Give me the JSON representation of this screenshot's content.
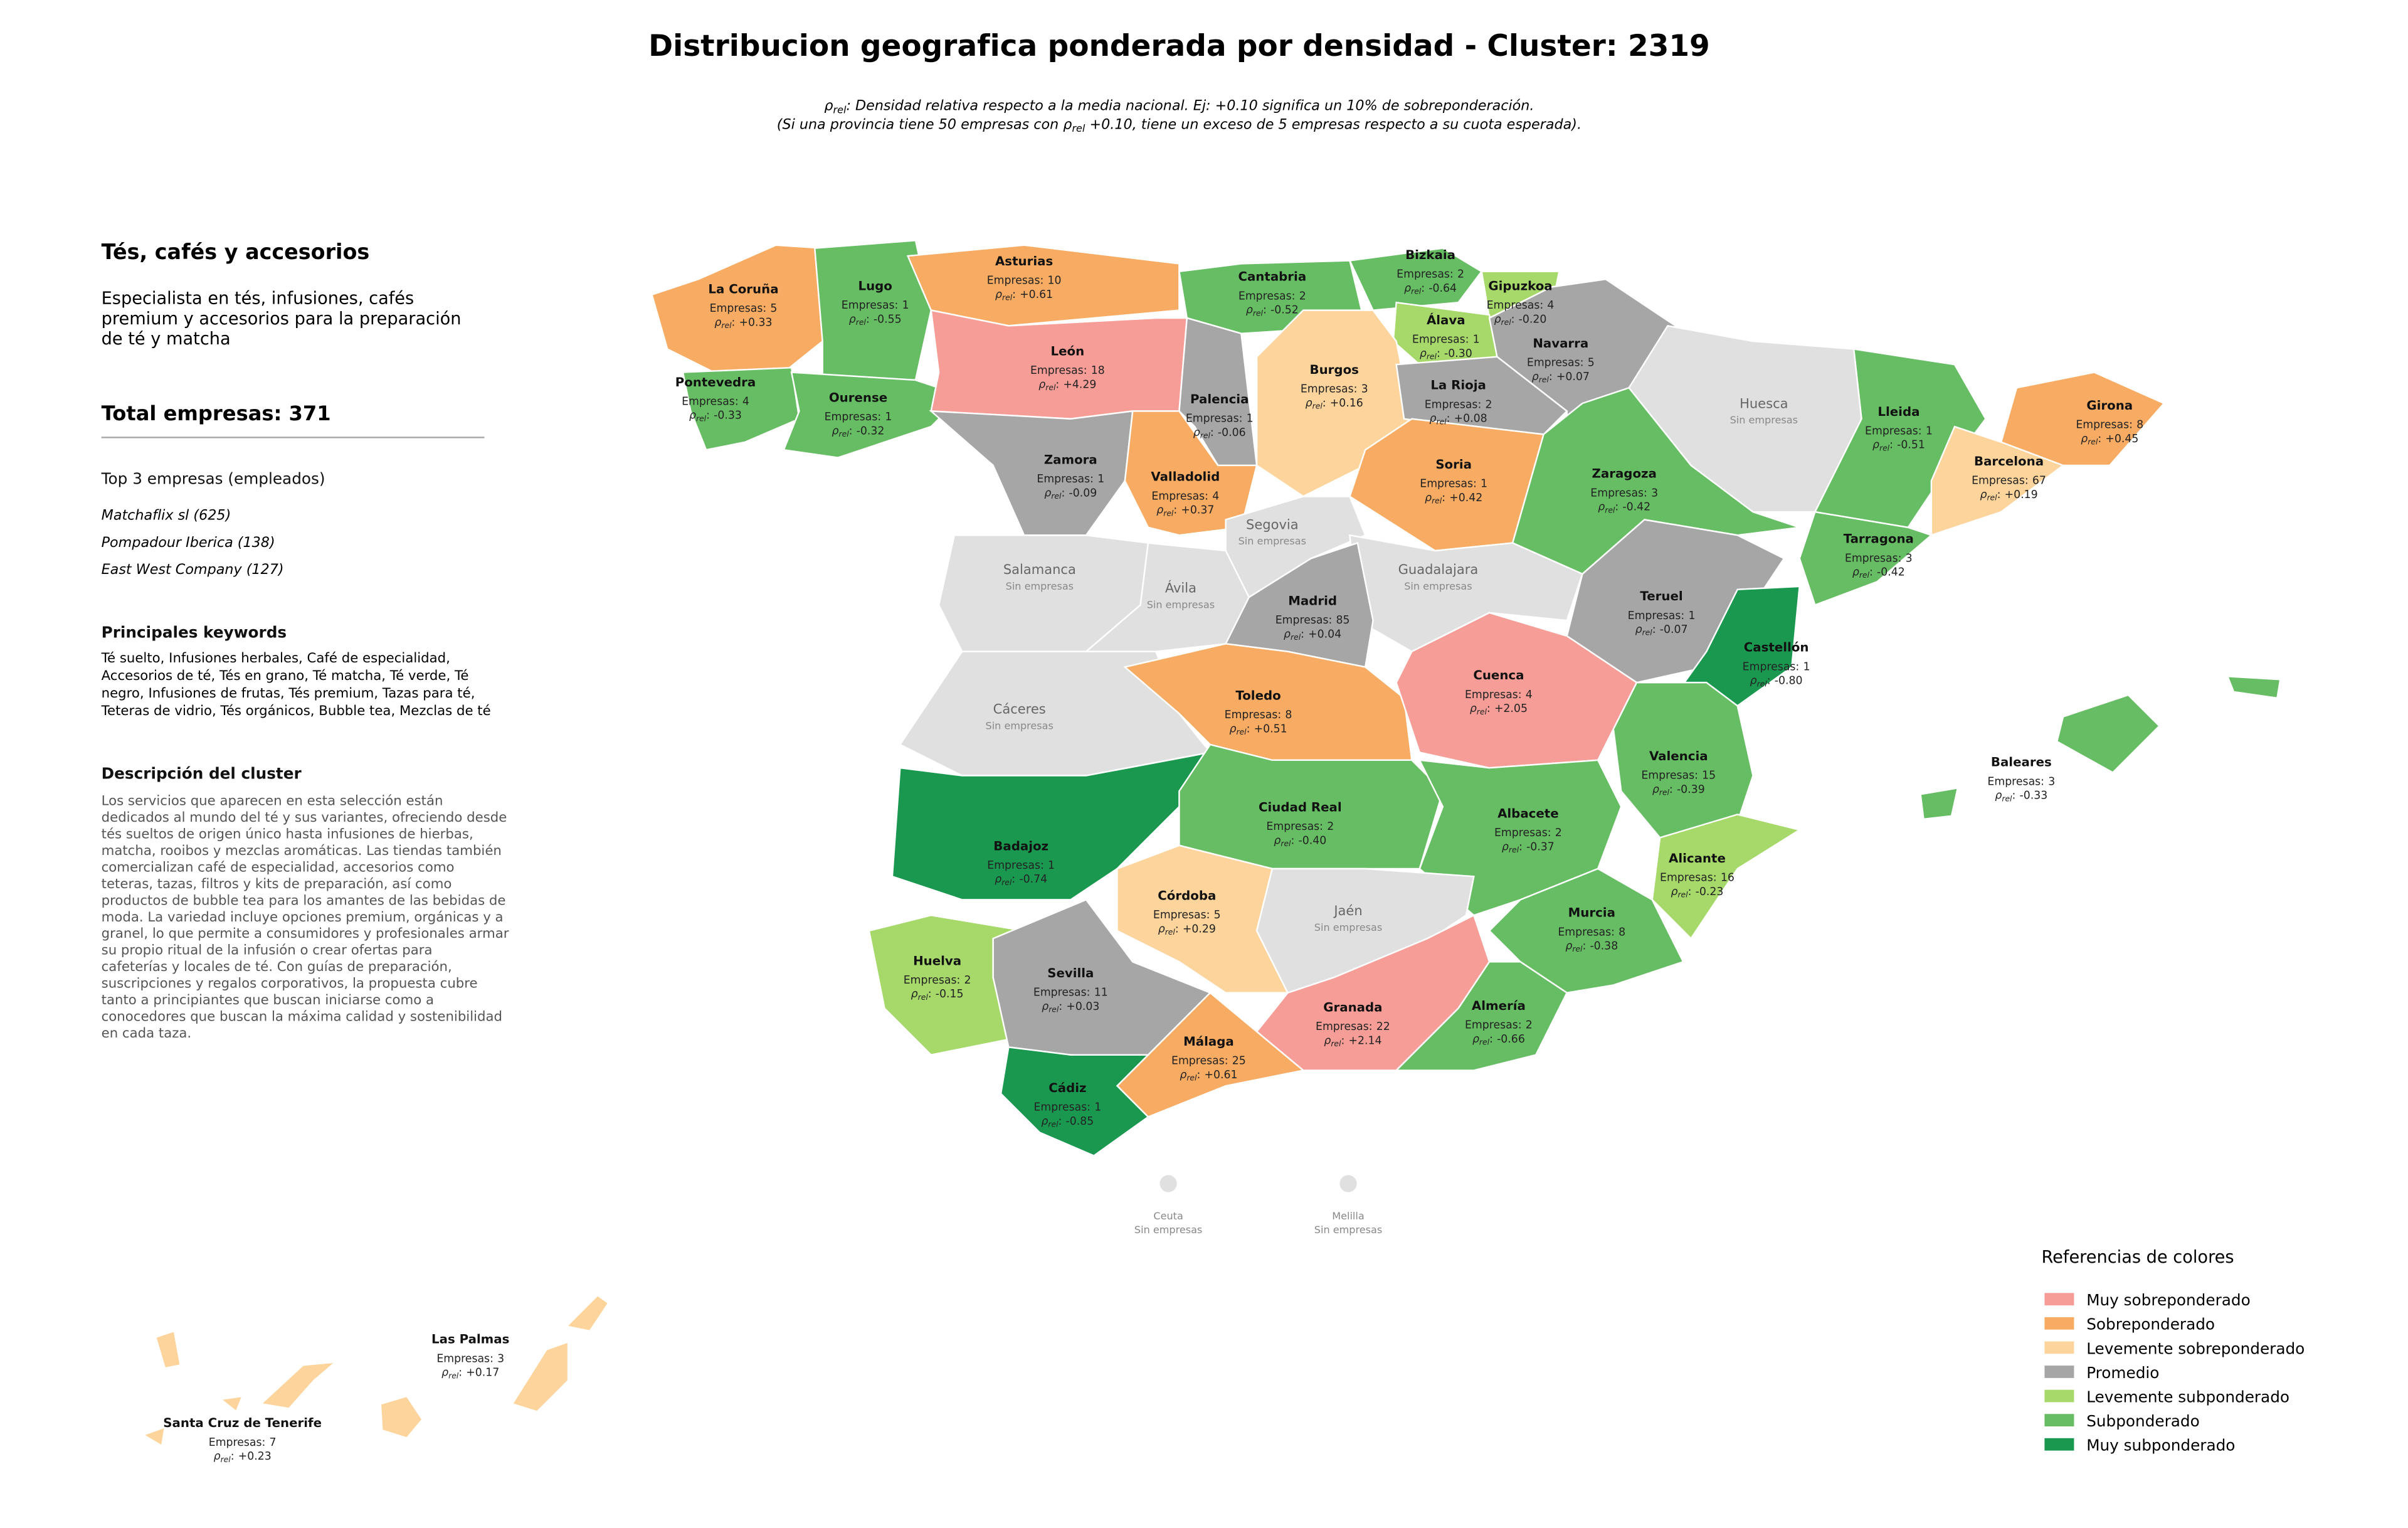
{
  "title": "Distribucion geografica ponderada por densidad - Cluster: 2319",
  "subtitle": [
    {
      "pre": "ρ",
      "sub": "rel",
      "post": ": Densidad relativa respecto a la media nacional. Ej: +0.10 significa un 10% de sobreponderación."
    },
    {
      "pre": "(Si una provincia tiene 50 empresas con ρ",
      "sub": "rel",
      "post": " +0.10, tiene un exceso de 5 empresas respecto a su cuota esperada)."
    }
  ],
  "sidebar": {
    "heading": "Tés, cafés y accesorios",
    "summary": [
      "Especialista en tés, infusiones, cafés",
      "premium y accesorios para la preparación",
      "de té y matcha"
    ],
    "total": "Total empresas: 371",
    "top_heading": "Top 3 empresas (empleados)",
    "top": [
      "Matchaflix sl (625)",
      "Pompadour Iberica (138)",
      "East West Company (127)"
    ],
    "keywords_heading": "Principales keywords",
    "keywords": [
      "Té suelto, Infusiones herbales, Café de especialidad,",
      "Accesorios de té, Tés en grano, Té matcha, Té verde, Té",
      "negro, Infusiones de frutas, Tés premium, Tazas para té,",
      "Teteras de vidrio, Tés orgánicos, Bubble tea, Mezclas de té"
    ],
    "description_heading": "Descripción del cluster",
    "description": [
      "Los servicios que aparecen en esta selección están",
      "dedicados al mundo del té y sus variantes, ofreciendo desde",
      "tés sueltos de origen único hasta infusiones de hierbas,",
      "matcha, rooibos y mezclas aromáticas. Las tiendas también",
      "comercializan café de especialidad, accesorios como",
      "teteras, tazas, filtros y kits de preparación, así como",
      "productos de bubble tea para los amantes de las bebidas de",
      "moda. La variedad incluye opciones premium, orgánicas y a",
      "granel, lo que permite a consumidores y profesionales armar",
      "su propio ritual de la infusión o crear ofertas para",
      "cafeterías y locales de té. Con guías de preparación,",
      "suscripciones y regalos corporativos, la propuesta cubre",
      "tanto a principiantes que buscan iniciarse como a",
      "conocedores que buscan la máxima calidad y sostenibilidad",
      "en cada taza."
    ]
  },
  "labels": {
    "empresas": "Empresas:",
    "rho": "ρ",
    "rho_sub": "rel",
    "rho_colon": ":"
  },
  "provinces": [
    {
      "name": "La Coruña",
      "empresas": 5,
      "rho": 0.33,
      "rho_label": "+0.33",
      "color": "#f8ab62"
    },
    {
      "name": "Lugo",
      "empresas": 1,
      "rho": -0.55,
      "rho_label": "-0.55",
      "color": "#66bd63"
    },
    {
      "name": "Asturias",
      "empresas": 10,
      "rho": 0.61,
      "rho_label": "+0.61",
      "color": "#f8ab62"
    },
    {
      "name": "Cantabria",
      "empresas": 2,
      "rho": -0.52,
      "rho_label": "-0.52",
      "color": "#66bd63"
    },
    {
      "name": "Bizkaia",
      "empresas": 2,
      "rho": -0.64,
      "rho_label": "-0.64",
      "color": "#66bd63"
    },
    {
      "name": "Gipuzkoa",
      "empresas": 4,
      "rho": -0.2,
      "rho_label": "-0.20",
      "color": "#a6d96a"
    },
    {
      "name": "Álava",
      "empresas": 1,
      "rho": -0.3,
      "rho_label": "-0.30",
      "color": "#a6d96a"
    },
    {
      "name": "Navarra",
      "empresas": 5,
      "rho": 0.07,
      "rho_label": "+0.07",
      "color": "#a6a6a6"
    },
    {
      "name": "Pontevedra",
      "empresas": 4,
      "rho": -0.33,
      "rho_label": "-0.33",
      "color": "#66bd63"
    },
    {
      "name": "Ourense",
      "empresas": 1,
      "rho": -0.32,
      "rho_label": "-0.32",
      "color": "#66bd63"
    },
    {
      "name": "León",
      "empresas": 18,
      "rho": 4.29,
      "rho_label": "+4.29",
      "color": "#f79d97"
    },
    {
      "name": "Palencia",
      "empresas": 1,
      "rho": -0.06,
      "rho_label": "-0.06",
      "color": "#a6a6a6"
    },
    {
      "name": "Burgos",
      "empresas": 3,
      "rho": 0.16,
      "rho_label": "+0.16",
      "color": "#fdd49b"
    },
    {
      "name": "La Rioja",
      "empresas": 2,
      "rho": 0.08,
      "rho_label": "+0.08",
      "color": "#a6a6a6"
    },
    {
      "name": "Huesca",
      "note": "Sin empresas",
      "color": "#e0e0e0"
    },
    {
      "name": "Lleida",
      "empresas": 1,
      "rho": -0.51,
      "rho_label": "-0.51",
      "color": "#66bd63"
    },
    {
      "name": "Girona",
      "empresas": 8,
      "rho": 0.45,
      "rho_label": "+0.45",
      "color": "#f8ab62"
    },
    {
      "name": "Barcelona",
      "empresas": 67,
      "rho": 0.19,
      "rho_label": "+0.19",
      "color": "#fdd49b"
    },
    {
      "name": "Zamora",
      "empresas": 1,
      "rho": -0.09,
      "rho_label": "-0.09",
      "color": "#a6a6a6"
    },
    {
      "name": "Valladolid",
      "empresas": 4,
      "rho": 0.37,
      "rho_label": "+0.37",
      "color": "#f8ab62"
    },
    {
      "name": "Soria",
      "empresas": 1,
      "rho": 0.42,
      "rho_label": "+0.42",
      "color": "#f8ab62"
    },
    {
      "name": "Zaragoza",
      "empresas": 3,
      "rho": -0.42,
      "rho_label": "-0.42",
      "color": "#66bd63"
    },
    {
      "name": "Salamanca",
      "note": "Sin empresas",
      "color": "#e0e0e0"
    },
    {
      "name": "Segovia",
      "note": "Sin empresas",
      "color": "#e0e0e0"
    },
    {
      "name": "Ávila",
      "note": "Sin empresas",
      "color": "#e0e0e0"
    },
    {
      "name": "Guadalajara",
      "note": "Sin empresas",
      "color": "#e0e0e0"
    },
    {
      "name": "Madrid",
      "empresas": 85,
      "rho": 0.04,
      "rho_label": "+0.04",
      "color": "#a6a6a6"
    },
    {
      "name": "Teruel",
      "empresas": 1,
      "rho": -0.07,
      "rho_label": "-0.07",
      "color": "#a6a6a6"
    },
    {
      "name": "Tarragona",
      "empresas": 3,
      "rho": -0.42,
      "rho_label": "-0.42",
      "color": "#66bd63"
    },
    {
      "name": "Castellón",
      "empresas": 1,
      "rho": -0.8,
      "rho_label": "-0.80",
      "color": "#1a9850"
    },
    {
      "name": "Cáceres",
      "note": "Sin empresas",
      "color": "#e0e0e0"
    },
    {
      "name": "Toledo",
      "empresas": 8,
      "rho": 0.51,
      "rho_label": "+0.51",
      "color": "#f8ab62"
    },
    {
      "name": "Cuenca",
      "empresas": 4,
      "rho": 2.05,
      "rho_label": "+2.05",
      "color": "#f79d97"
    },
    {
      "name": "Valencia",
      "empresas": 15,
      "rho": -0.39,
      "rho_label": "-0.39",
      "color": "#66bd63"
    },
    {
      "name": "Badajoz",
      "empresas": 1,
      "rho": -0.74,
      "rho_label": "-0.74",
      "color": "#1a9850"
    },
    {
      "name": "Ciudad Real",
      "empresas": 2,
      "rho": -0.4,
      "rho_label": "-0.40",
      "color": "#66bd63"
    },
    {
      "name": "Albacete",
      "empresas": 2,
      "rho": -0.37,
      "rho_label": "-0.37",
      "color": "#66bd63"
    },
    {
      "name": "Alicante",
      "empresas": 16,
      "rho": -0.23,
      "rho_label": "-0.23",
      "color": "#a6d96a"
    },
    {
      "name": "Córdoba",
      "empresas": 5,
      "rho": 0.29,
      "rho_label": "+0.29",
      "color": "#fdd49b"
    },
    {
      "name": "Jaén",
      "note": "Sin empresas",
      "color": "#e0e0e0"
    },
    {
      "name": "Murcia",
      "empresas": 8,
      "rho": -0.38,
      "rho_label": "-0.38",
      "color": "#66bd63"
    },
    {
      "name": "Huelva",
      "empresas": 2,
      "rho": -0.15,
      "rho_label": "-0.15",
      "color": "#a6d96a"
    },
    {
      "name": "Sevilla",
      "empresas": 11,
      "rho": 0.03,
      "rho_label": "+0.03",
      "color": "#a6a6a6"
    },
    {
      "name": "Granada",
      "empresas": 22,
      "rho": 2.14,
      "rho_label": "+2.14",
      "color": "#f79d97"
    },
    {
      "name": "Almería",
      "empresas": 2,
      "rho": -0.66,
      "rho_label": "-0.66",
      "color": "#66bd63"
    },
    {
      "name": "Málaga",
      "empresas": 25,
      "rho": 0.61,
      "rho_label": "+0.61",
      "color": "#f8ab62"
    },
    {
      "name": "Cádiz",
      "empresas": 1,
      "rho": -0.85,
      "rho_label": "-0.85",
      "color": "#1a9850"
    },
    {
      "name": "Baleares",
      "empresas": 3,
      "rho": -0.33,
      "rho_label": "-0.33",
      "color": "#66bd63"
    },
    {
      "name": "Las Palmas",
      "empresas": 3,
      "rho": 0.17,
      "rho_label": "+0.17",
      "color": "#fdd49b"
    },
    {
      "name": "Santa Cruz de Tenerife",
      "empresas": 7,
      "rho": 0.23,
      "rho_label": "+0.23",
      "color": "#fdd49b"
    }
  ],
  "cities": [
    {
      "name": "Ceuta",
      "note": "Sin empresas",
      "color": "#e0e0e0"
    },
    {
      "name": "Melilla",
      "note": "Sin empresas",
      "color": "#e0e0e0"
    }
  ],
  "legend": {
    "title": "Referencias de colores",
    "entries": [
      {
        "label": "Muy sobreponderado",
        "color": "#f79d97"
      },
      {
        "label": "Sobreponderado",
        "color": "#f8ab62"
      },
      {
        "label": "Levemente sobreponderado",
        "color": "#fdd49b"
      },
      {
        "label": "Promedio",
        "color": "#a6a6a6"
      },
      {
        "label": "Levemente subponderado",
        "color": "#a6d96a"
      },
      {
        "label": "Subponderado",
        "color": "#66bd63"
      },
      {
        "label": "Muy subponderado",
        "color": "#1a9850"
      }
    ]
  }
}
